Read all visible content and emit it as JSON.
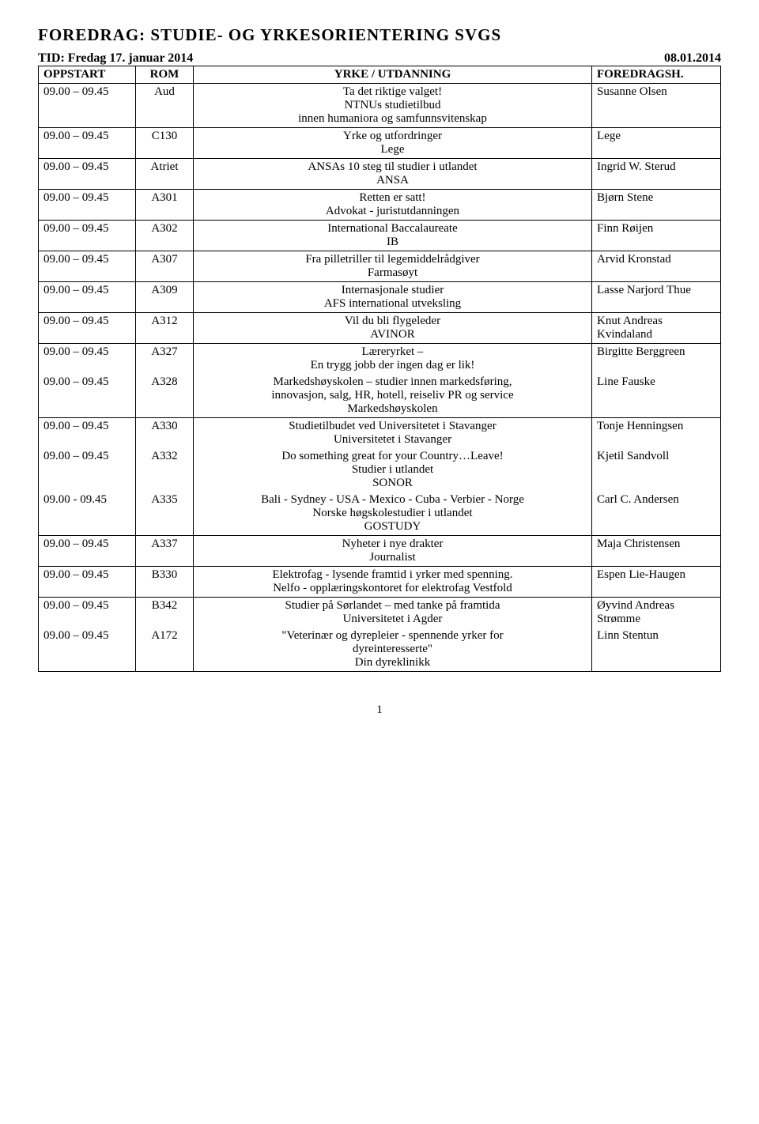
{
  "title": "FOREDRAG: STUDIE- OG YRKESORIENTERING SVGS",
  "subhead_left": "TID: Fredag 17. januar 2014",
  "subhead_right": "08.01.2014",
  "columns": {
    "oppstart": "OPPSTART",
    "rom": "ROM",
    "yrke": "YRKE / UTDANNING",
    "foredrag": "FOREDRAGSH."
  },
  "rows": [
    {
      "time": "09.00 – 09.45",
      "room": "Aud",
      "desc": "Ta det riktige valget!\nNTNUs studietilbud\ninnen humaniora og samfunnsvitenskap",
      "speaker": "Susanne Olsen"
    },
    {
      "time": "09.00 – 09.45",
      "room": "C130",
      "desc": "Yrke og utfordringer\nLege",
      "speaker": "Lege"
    },
    {
      "time": "09.00 – 09.45",
      "room": "Atriet",
      "desc": "ANSAs 10 steg til studier i utlandet\nANSA",
      "speaker": "Ingrid W. Sterud"
    },
    {
      "time": "09.00 – 09.45",
      "room": "A301",
      "desc": "Retten er satt!\nAdvokat - juristutdanningen",
      "speaker": "Bjørn Stene"
    },
    {
      "time": "09.00 – 09.45",
      "room": "A302",
      "desc": "International Baccalaureate\nIB",
      "speaker": "Finn Røijen"
    },
    {
      "time": "09.00 – 09.45",
      "room": "A307",
      "desc": "Fra pilletriller til legemiddelrådgiver\nFarmasøyt",
      "speaker": "Arvid Kronstad"
    },
    {
      "time": "09.00 – 09.45",
      "room": "A309",
      "desc": "Internasjonale studier\nAFS international utveksling",
      "speaker": "Lasse Narjord Thue"
    },
    {
      "time": "09.00 – 09.45",
      "room": "A312",
      "desc": "Vil du bli flygeleder\nAVINOR",
      "speaker": "Knut Andreas Kvindaland"
    },
    {
      "time": "09.00 – 09.45",
      "room": "A327",
      "desc": "Læreryrket –\nEn trygg jobb der ingen dag er lik!",
      "speaker": "Birgitte Berggreen",
      "merge_below": true
    },
    {
      "time": "09.00 – 09.45",
      "room": "A328",
      "desc": "Markedshøyskolen – studier innen markedsføring,\ninnovasjon, salg, HR, hotell, reiseliv PR og service\nMarkedshøyskolen",
      "speaker": "Line Fauske"
    },
    {
      "time": "09.00 – 09.45",
      "room": "A330",
      "desc": "Studietilbudet ved Universitetet i Stavanger\nUniversitetet i Stavanger",
      "speaker": "Tonje Henningsen",
      "merge_below": true
    },
    {
      "time": "09.00 – 09.45",
      "room": "A332",
      "desc": "Do something great for your Country…Leave!\nStudier i utlandet\nSONOR",
      "speaker": "Kjetil Sandvoll",
      "merge_below": true
    },
    {
      "time": "09.00 - 09.45",
      "room": "A335",
      "desc": "Bali - Sydney - USA - Mexico - Cuba - Verbier - Norge\nNorske høgskolestudier i utlandet\nGOSTUDY",
      "speaker": "Carl C. Andersen"
    },
    {
      "time": "09.00 – 09.45",
      "room": "A337",
      "desc": "Nyheter i nye drakter\nJournalist",
      "speaker": "Maja Christensen"
    },
    {
      "time": "09.00 – 09.45",
      "room": "B330",
      "desc": "Elektrofag - lysende framtid i yrker med spenning.\nNelfo - opplæringskontoret for elektrofag Vestfold",
      "speaker": "Espen Lie-Haugen"
    },
    {
      "time": "09.00 – 09.45",
      "room": "B342",
      "desc": "Studier på Sørlandet – med tanke på framtida\nUniversitetet i Agder",
      "speaker": "Øyvind Andreas Strømme",
      "merge_below": true
    },
    {
      "time": "09.00 – 09.45",
      "room": "A172",
      "desc": "\"Veterinær og dyrepleier - spennende yrker for\ndyreinteresserte\"\nDin dyreklinikk",
      "speaker": "Linn Stentun"
    }
  ],
  "pagenum": "1"
}
